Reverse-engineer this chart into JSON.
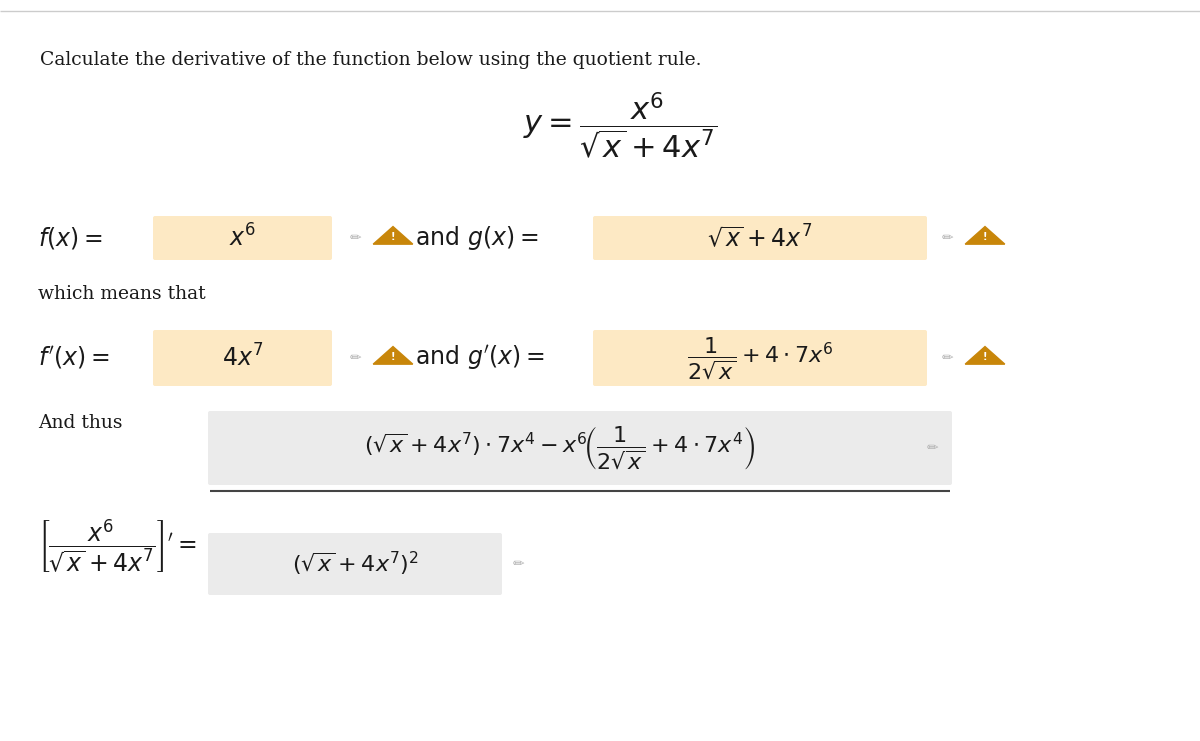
{
  "bg_color": "#ffffff",
  "text_color": "#1a1a1a",
  "box_color": "#fde9c4",
  "box_color2": "#ebebeb",
  "title": "Calculate the derivative of the function below using the quotient rule.",
  "title_fontsize": 13.5,
  "body_fontsize": 16,
  "math_fontsize": 17,
  "warn_color": "#c8860a",
  "pencil_color": "#b0b0b0",
  "line_color": "#444444"
}
